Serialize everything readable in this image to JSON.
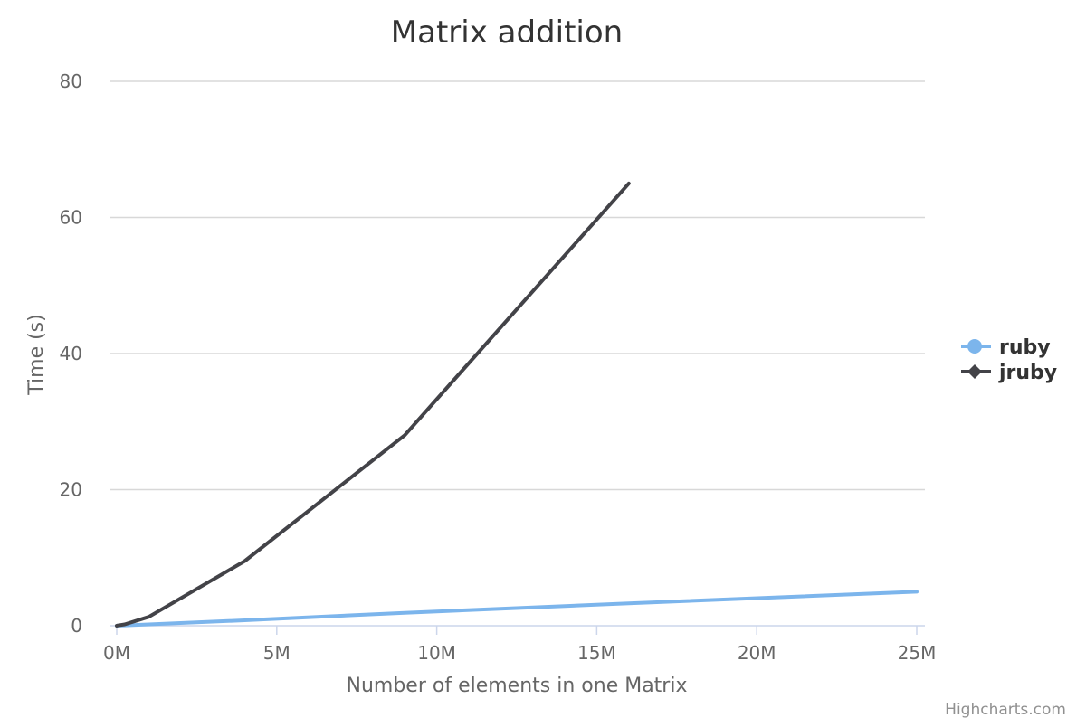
{
  "chart_data": {
    "type": "line",
    "title": "Matrix addition",
    "xlabel": "Number of elements in one Matrix",
    "ylabel": "Time (s)",
    "xlim": [
      0,
      25
    ],
    "ylim": [
      0,
      80
    ],
    "x_ticks": [
      "0M",
      "5M",
      "10M",
      "15M",
      "20M",
      "25M"
    ],
    "y_ticks": [
      "0",
      "20",
      "40",
      "60",
      "80"
    ],
    "grid": true,
    "legend_position": "right",
    "series": [
      {
        "name": "ruby",
        "color": "#7cb5ec",
        "marker": "circle",
        "x": [
          0,
          0.01,
          0.25,
          1,
          4,
          9,
          16,
          25
        ],
        "y": [
          0,
          0.01,
          0.05,
          0.2,
          0.8,
          1.9,
          3.3,
          5.0
        ]
      },
      {
        "name": "jruby",
        "color": "#434348",
        "marker": "diamond",
        "x": [
          0,
          0.01,
          0.25,
          1,
          4,
          9,
          16
        ],
        "y": [
          0,
          0.02,
          0.2,
          1.3,
          9.5,
          28,
          65
        ]
      }
    ]
  },
  "credits": "Highcharts.com"
}
